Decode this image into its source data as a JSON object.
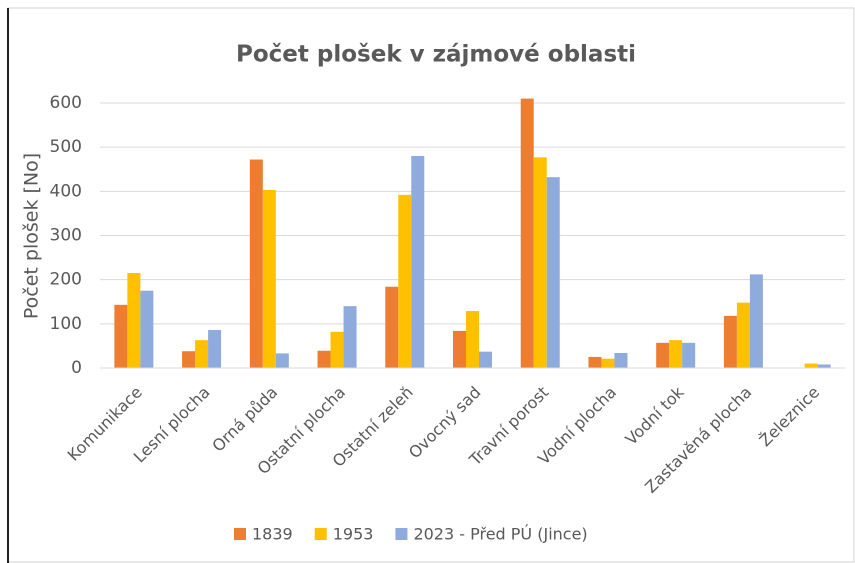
{
  "chart_data": {
    "type": "bar",
    "title": "Počet plošek v zájmové oblasti",
    "y_label": "Počet plošek [No]",
    "categories": [
      "Komunikace",
      "Lesní plocha",
      "Orná půda",
      "Ostatní plocha",
      "Ostatní zeleň",
      "Ovocný sad",
      "Travní porost",
      "Vodní plocha",
      "Vodní tok",
      "Zastavěná plocha",
      "Železnice"
    ],
    "series": [
      {
        "name": "1839",
        "color": "#ed7d31",
        "values": [
          143,
          38,
          472,
          39,
          184,
          84,
          610,
          25,
          57,
          118,
          0
        ]
      },
      {
        "name": "1953",
        "color": "#ffc000",
        "values": [
          215,
          63,
          403,
          82,
          392,
          129,
          477,
          21,
          63,
          148,
          10
        ]
      },
      {
        "name": "2023 - Před PÚ (Jince)",
        "color": "#8faadc",
        "values": [
          175,
          86,
          33,
          140,
          480,
          37,
          432,
          34,
          57,
          212,
          8
        ]
      }
    ],
    "ylim": [
      0,
      600
    ],
    "yticks": [
      0,
      100,
      200,
      300,
      400,
      500,
      600
    ],
    "grid": true,
    "legend": "bottom"
  }
}
